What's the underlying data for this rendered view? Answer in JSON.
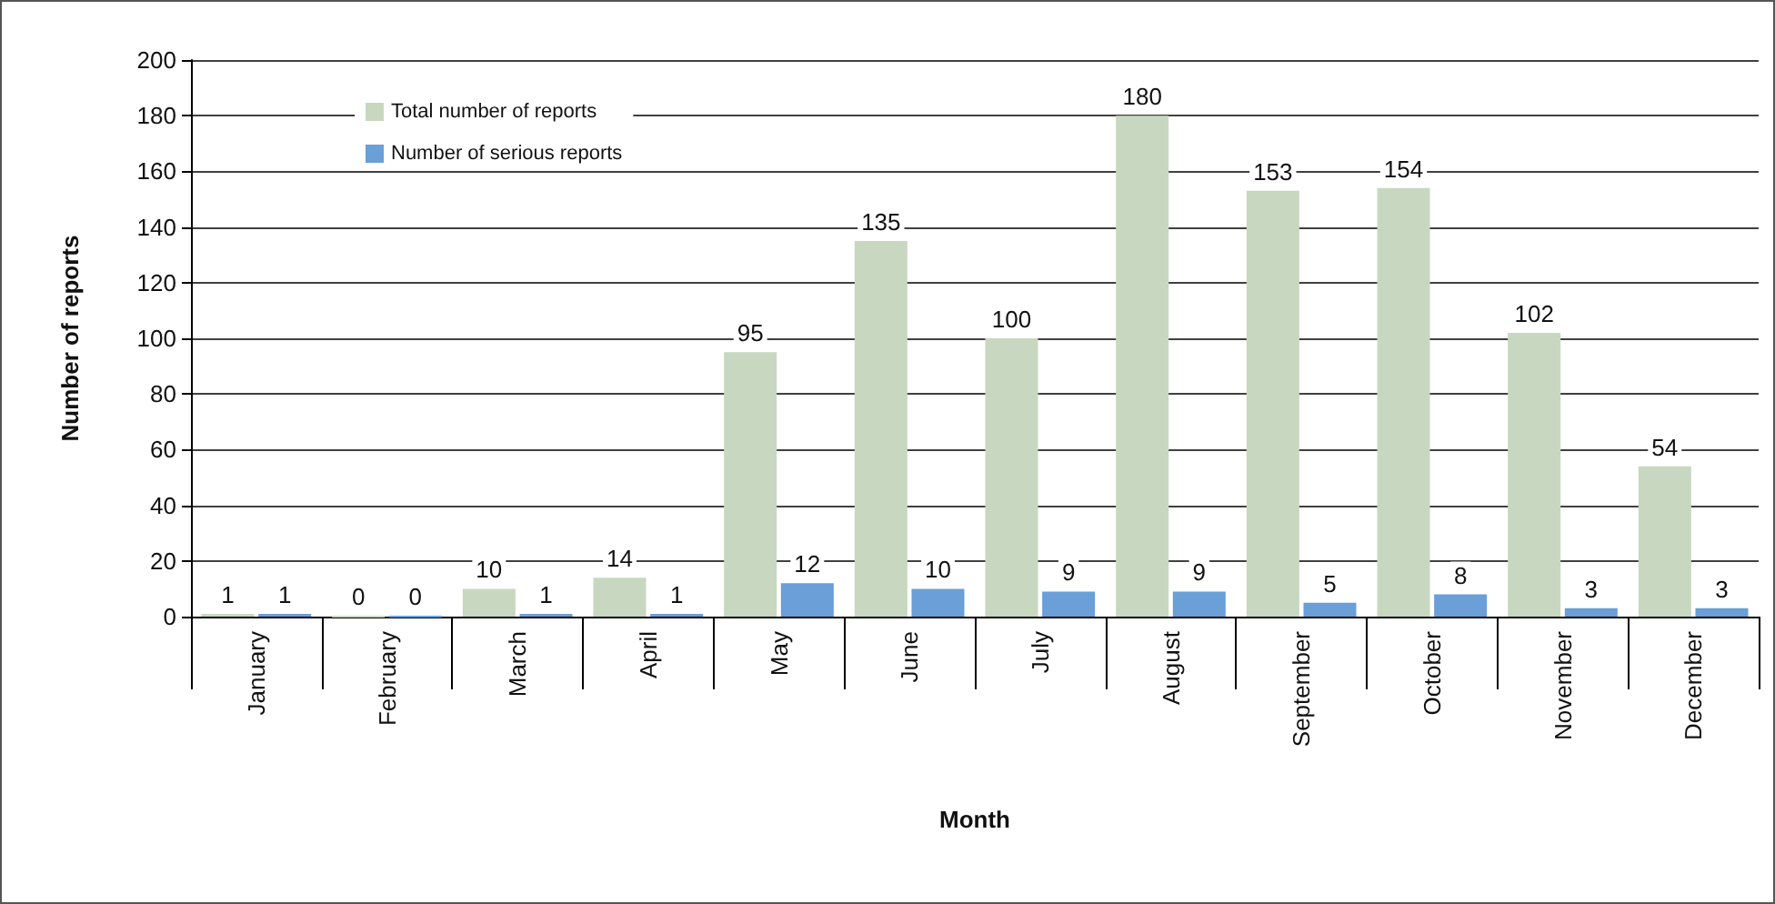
{
  "chart_data": {
    "type": "bar",
    "xlabel": "Month",
    "ylabel": "Number of reports",
    "categories": [
      "January",
      "February",
      "March",
      "April",
      "May",
      "June",
      "July",
      "August",
      "September",
      "October",
      "November",
      "December"
    ],
    "series": [
      {
        "name": "Total number of reports",
        "color": "#c8d8c0",
        "values": [
          1,
          0,
          10,
          14,
          95,
          135,
          100,
          180,
          153,
          154,
          102,
          54
        ]
      },
      {
        "name": "Number of serious reports",
        "color": "#6a9fd8",
        "values": [
          1,
          0,
          1,
          1,
          12,
          10,
          9,
          9,
          5,
          8,
          3,
          3
        ]
      }
    ],
    "ylim": [
      0,
      200
    ],
    "yticks": [
      0,
      20,
      40,
      60,
      80,
      100,
      120,
      140,
      160,
      180,
      200
    ],
    "grid": "y",
    "legend": "top left",
    "data_labels": true
  }
}
